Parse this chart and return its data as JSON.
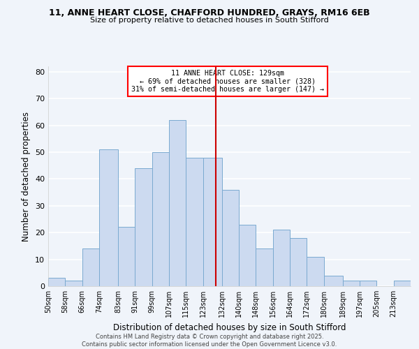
{
  "title1": "11, ANNE HEART CLOSE, CHAFFORD HUNDRED, GRAYS, RM16 6EB",
  "title2": "Size of property relative to detached houses in South Stifford",
  "xlabel": "Distribution of detached houses by size in South Stifford",
  "ylabel": "Number of detached properties",
  "bar_color": "#ccdaf0",
  "bar_edge_color": "#7aaad0",
  "background_color": "#f0f4fa",
  "grid_color": "#ffffff",
  "annotation_line1": "11 ANNE HEART CLOSE: 129sqm",
  "annotation_line2": "← 69% of detached houses are smaller (328)",
  "annotation_line3": "31% of semi-detached houses are larger (147) →",
  "vline_x": 129,
  "vline_color": "#cc0000",
  "bins": [
    50,
    58,
    66,
    74,
    83,
    91,
    99,
    107,
    115,
    123,
    132,
    140,
    148,
    156,
    164,
    172,
    180,
    189,
    197,
    205,
    213
  ],
  "bin_labels": [
    "50sqm",
    "58sqm",
    "66sqm",
    "74sqm",
    "83sqm",
    "91sqm",
    "99sqm",
    "107sqm",
    "115sqm",
    "123sqm",
    "132sqm",
    "140sqm",
    "148sqm",
    "156sqm",
    "164sqm",
    "172sqm",
    "180sqm",
    "189sqm",
    "197sqm",
    "205sqm",
    "213sqm"
  ],
  "bar_heights": [
    3,
    2,
    14,
    51,
    22,
    44,
    50,
    62,
    48,
    48,
    36,
    23,
    14,
    21,
    18,
    11,
    4,
    2,
    2,
    0,
    2
  ],
  "ylim": [
    0,
    82
  ],
  "yticks": [
    0,
    10,
    20,
    30,
    40,
    50,
    60,
    70,
    80
  ],
  "footer1": "Contains HM Land Registry data © Crown copyright and database right 2025.",
  "footer2": "Contains public sector information licensed under the Open Government Licence v3.0."
}
